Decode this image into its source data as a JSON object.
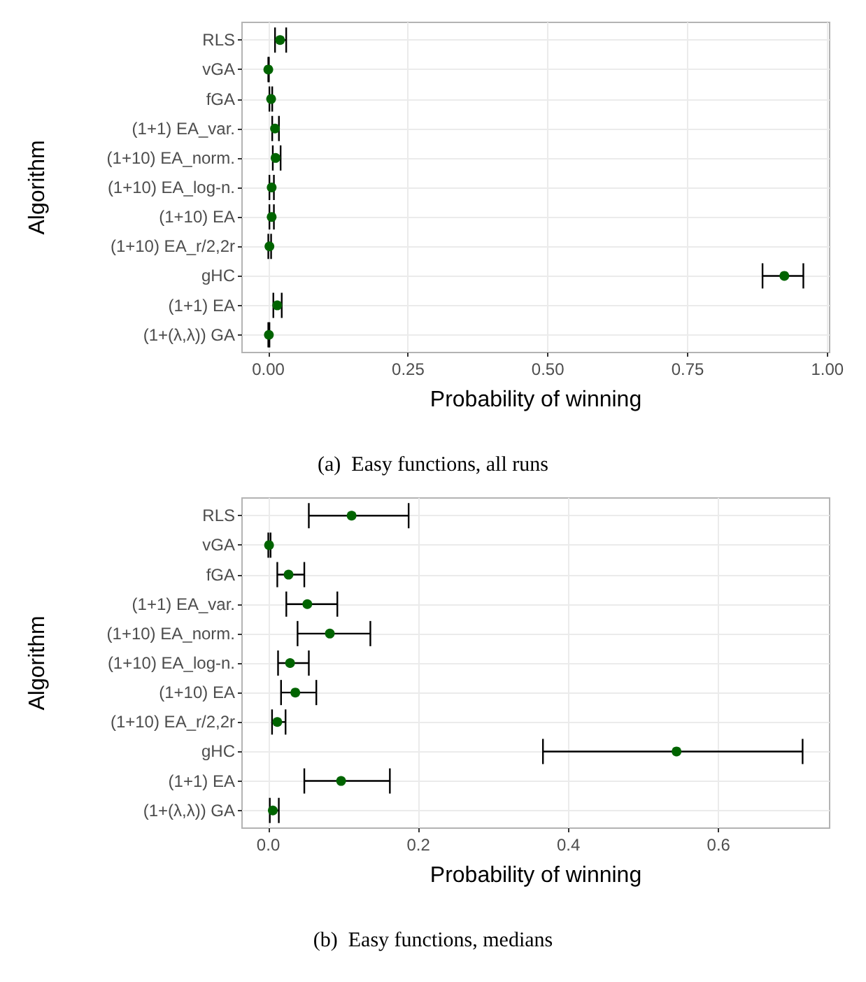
{
  "chart_data": [
    {
      "type": "scatter",
      "orientation": "horizontal",
      "xlabel": "Probability of winning",
      "ylabel": "Algorithm",
      "categories": [
        "RLS",
        "vGA",
        "fGA",
        "(1+1) EA_var.",
        "(1+10) EA_norm.",
        "(1+10) EA_log-n.",
        "(1+10) EA",
        "(1+10) EA_r/2,2r",
        "gHC",
        "(1+1) EA",
        "(1+(λ,λ)) GA"
      ],
      "series": [
        {
          "color": "#006400",
          "values": [
            0.021,
            0.0,
            0.005,
            0.012,
            0.013,
            0.006,
            0.006,
            0.002,
            0.923,
            0.016,
            0.001
          ],
          "errors": [
            [
              0.012,
              0.032
            ],
            [
              0.0,
              0.001
            ],
            [
              0.002,
              0.007
            ],
            [
              0.007,
              0.019
            ],
            [
              0.008,
              0.022
            ],
            [
              0.002,
              0.01
            ],
            [
              0.002,
              0.01
            ],
            [
              0.0,
              0.005
            ],
            [
              0.884,
              0.957
            ],
            [
              0.009,
              0.024
            ],
            [
              0.0,
              0.002
            ]
          ]
        }
      ],
      "xlim": [
        -0.047,
        1.004
      ],
      "xticks": [
        {
          "value": 0,
          "label": "0.00"
        },
        0.25,
        {
          "value": 0.5,
          "label": "0.50"
        },
        0.75,
        {
          "value": 1,
          "label": "1.00"
        }
      ],
      "grid": true,
      "marker": "circle",
      "annotations": [
        "(a)  Easy functions, all runs"
      ]
    },
    {
      "type": "scatter",
      "orientation": "horizontal",
      "xlabel": "Probability of winning",
      "ylabel": "Algorithm",
      "categories": [
        "RLS",
        "vGA",
        "fGA",
        "(1+1) EA_var.",
        "(1+10) EA_norm.",
        "(1+10) EA_log-n.",
        "(1+10) EA",
        "(1+10) EA_r/2,2r",
        "gHC",
        "(1+1) EA",
        "(1+(λ,λ)) GA"
      ],
      "series": [
        {
          "color": "#006400",
          "values": [
            0.111,
            0.001,
            0.027,
            0.052,
            0.082,
            0.029,
            0.036,
            0.012,
            0.544,
            0.097,
            0.006
          ],
          "errors": [
            [
              0.054,
              0.187
            ],
            [
              0.0,
              0.003
            ],
            [
              0.012,
              0.048
            ],
            [
              0.024,
              0.092
            ],
            [
              0.039,
              0.136
            ],
            [
              0.013,
              0.054
            ],
            [
              0.017,
              0.064
            ],
            [
              0.005,
              0.023
            ],
            [
              0.366,
              0.712
            ],
            [
              0.048,
              0.162
            ],
            [
              0.002,
              0.014
            ]
          ]
        }
      ],
      "xlim": [
        -0.035,
        0.748
      ],
      "xticks": [
        {
          "value": 0,
          "label": "0.0"
        },
        0.2,
        0.4,
        0.6
      ],
      "grid": true,
      "marker": "circle",
      "annotations": [
        "(b)  Easy functions, medians"
      ]
    }
  ]
}
